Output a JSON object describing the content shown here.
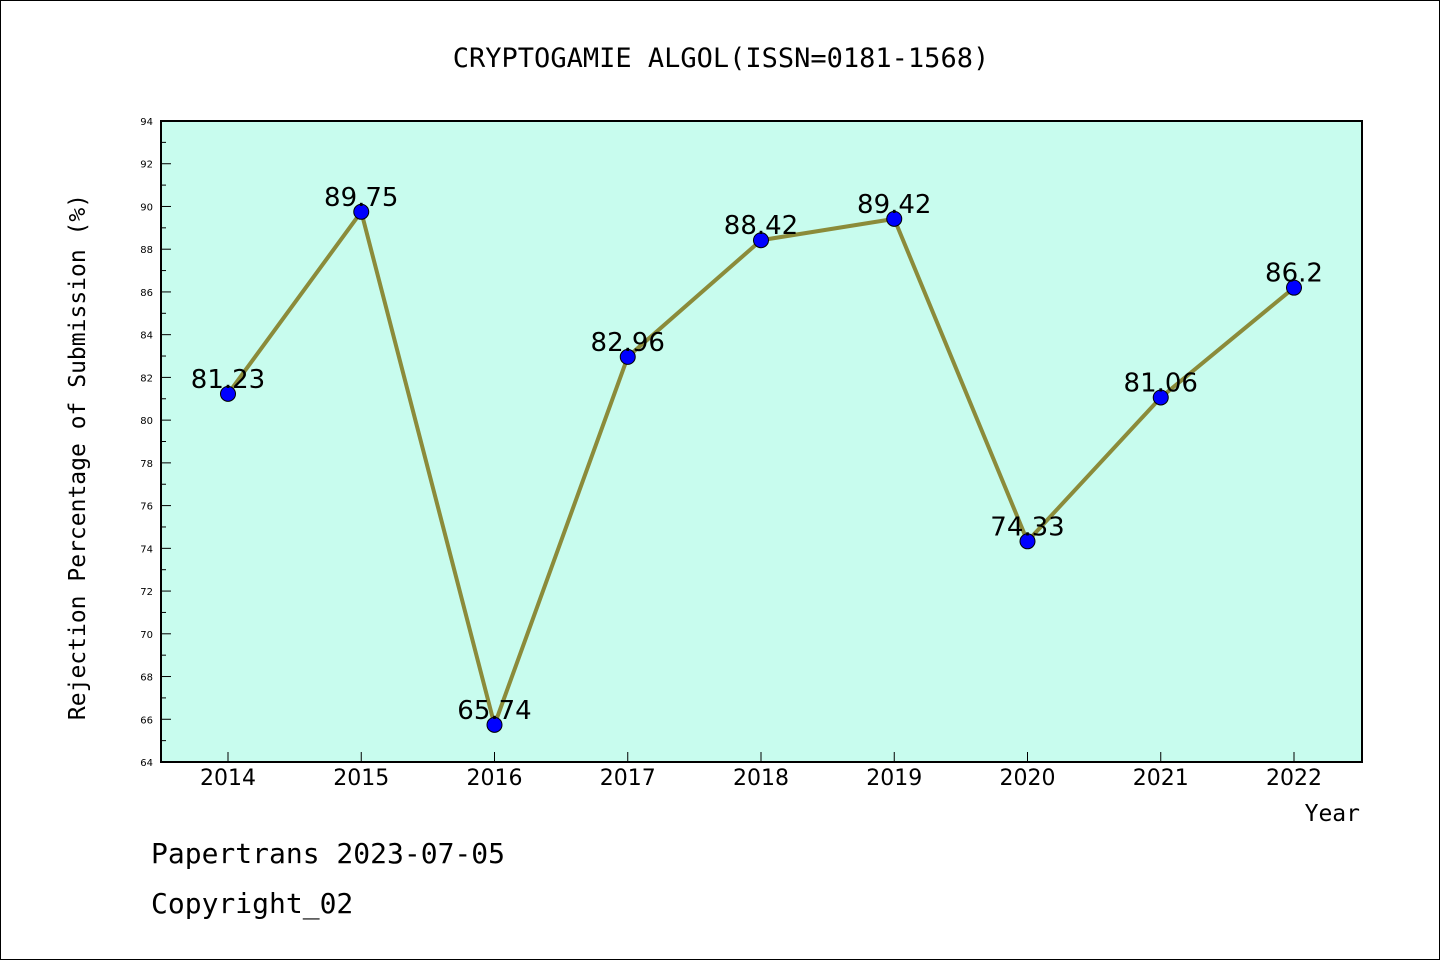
{
  "chart_data": {
    "type": "line",
    "title": "CRYPTOGAMIE ALGOL(ISSN=0181-1568)",
    "xlabel": "Year",
    "ylabel": "Rejection Percentage of Submission (%)",
    "categories": [
      "2014",
      "2015",
      "2016",
      "2017",
      "2018",
      "2019",
      "2020",
      "2021",
      "2022"
    ],
    "series": [
      {
        "values": [
          81.23,
          89.75,
          65.74,
          82.96,
          88.42,
          89.42,
          74.33,
          81.06,
          86.2
        ],
        "data_labels": [
          "81.23",
          "89.75",
          "65.74",
          "82.96",
          "88.42",
          "89.42",
          "74.33",
          "81.06",
          "86.2"
        ]
      }
    ],
    "ylim": [
      64,
      94
    ],
    "yticks": [
      64,
      66,
      68,
      70,
      72,
      74,
      76,
      78,
      80,
      82,
      84,
      86,
      88,
      90,
      92,
      94
    ],
    "grid": false,
    "colors": {
      "plot_background": "#c8fcee",
      "line": "#8b8b3a",
      "marker": "#0000ff"
    }
  },
  "footer": {
    "line1": "Papertrans 2023-07-05",
    "line2": "Copyright_02"
  }
}
